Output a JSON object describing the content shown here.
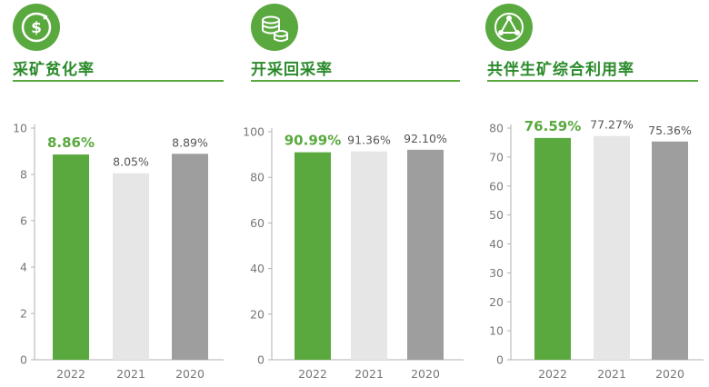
{
  "colors": {
    "accent": "#5aa93f",
    "title": "#2a8a2a",
    "light_bar": "#e6e6e6",
    "gray_bar": "#9e9e9e"
  },
  "panels": [
    {
      "title": "采矿贫化率",
      "icon": "dollar-coin-icon"
    },
    {
      "title": "开采回采率",
      "icon": "coin-stack-icon"
    },
    {
      "title": "共伴生矿综合利用率",
      "icon": "recycle-triangle-icon"
    }
  ],
  "chart_data": [
    {
      "type": "bar",
      "categories": [
        "2022",
        "2021",
        "2020"
      ],
      "values": [
        8.86,
        8.05,
        8.89
      ],
      "labels": [
        "8.86%",
        "8.05%",
        "8.89%"
      ],
      "ylim": [
        0,
        10
      ],
      "yticks": [
        0,
        2,
        4,
        6,
        8,
        10
      ]
    },
    {
      "type": "bar",
      "categories": [
        "2022",
        "2021",
        "2020"
      ],
      "values": [
        90.99,
        91.36,
        92.1
      ],
      "labels": [
        "90.99%",
        "91.36%",
        "92.10%"
      ],
      "ylim": [
        0,
        100
      ],
      "yticks": [
        0,
        20,
        40,
        60,
        80,
        100
      ]
    },
    {
      "type": "bar",
      "categories": [
        "2022",
        "2021",
        "2020"
      ],
      "values": [
        76.59,
        77.27,
        75.36
      ],
      "labels": [
        "76.59%",
        "77.27%",
        "75.36%"
      ],
      "ylim": [
        0,
        80
      ],
      "yticks": [
        0,
        10,
        20,
        30,
        40,
        50,
        60,
        70,
        80
      ]
    }
  ]
}
